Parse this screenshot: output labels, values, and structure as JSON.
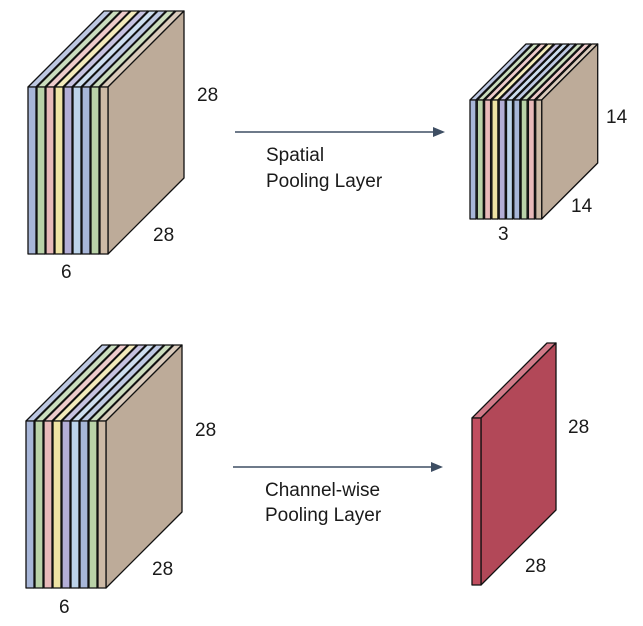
{
  "colors": {
    "stroke": "#111111",
    "arrow": "#3e4e63",
    "slices": [
      "#a7b6d8",
      "#b9d2a8",
      "#e8b9b9",
      "#efe3a4",
      "#b3aed6",
      "#bcd3ea"
    ],
    "main_face": "#cdbaa6",
    "single_face": "#c14e60"
  },
  "top": {
    "input_height_label": "28",
    "input_width_label": "28",
    "input_channels_label": "6",
    "arrow_caption_line1": "Spatial",
    "arrow_caption_line2": "Pooling Layer",
    "output_height_label": "14",
    "output_width_label": "14",
    "output_channels_label": "3"
  },
  "bottom": {
    "input_height_label": "28",
    "input_width_label": "28",
    "input_channels_label": "6",
    "arrow_caption_line1": "Channel-wise",
    "arrow_caption_line2": "Pooling Layer",
    "output_height_label": "28",
    "output_width_label": "28"
  }
}
